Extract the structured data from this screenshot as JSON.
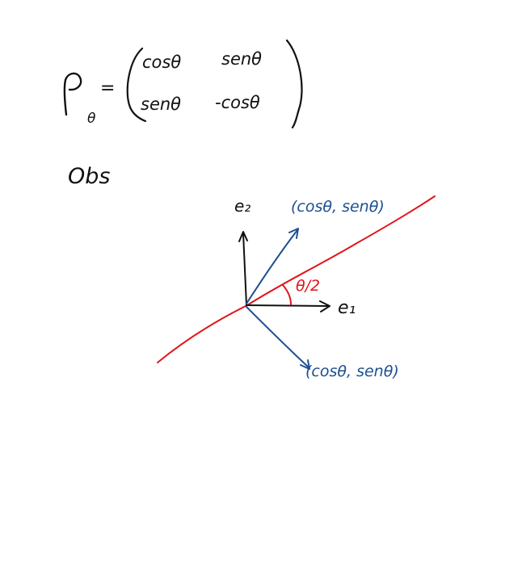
{
  "formula": {
    "lhs_symbol": "ρ",
    "lhs_subscript": "θ",
    "equals": "=",
    "matrix": [
      [
        "cosθ",
        "senθ"
      ],
      [
        "senθ",
        "-cosθ"
      ]
    ]
  },
  "note": "Obs",
  "diagram": {
    "axis_e2_label": "e₂",
    "axis_e1_label": "e₁",
    "vector_upper_label": "(cosθ, senθ)",
    "vector_lower_label": "(cosθ, senθ)",
    "angle_label": "θ/2"
  },
  "colors": {
    "ink_black": "#111111",
    "ink_blue": "#1d4f91",
    "ink_red": "#e0161b"
  }
}
